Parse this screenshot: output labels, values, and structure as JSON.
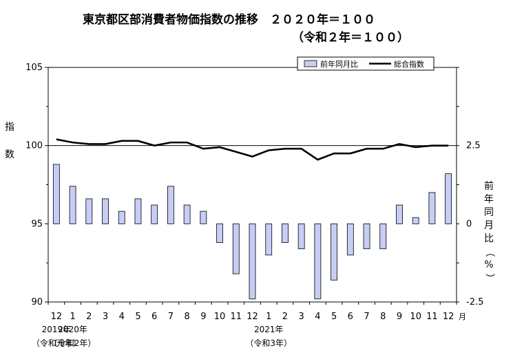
{
  "title": "東京都区部消費者物価指数の推移　２０２０年＝１００",
  "subtitle": "（令和２年＝１００）",
  "colors": {
    "bar_fill": "#c7cdf4",
    "bar_stroke": "#000000",
    "line": "#000000"
  },
  "chart_data": {
    "type": "bar+line",
    "categories": [
      "12",
      "1",
      "2",
      "3",
      "4",
      "5",
      "6",
      "7",
      "8",
      "9",
      "10",
      "11",
      "12",
      "1",
      "2",
      "3",
      "4",
      "5",
      "6",
      "7",
      "8",
      "9",
      "10",
      "11",
      "12"
    ],
    "x_unit": "月",
    "year_labels": [
      {
        "index": 0,
        "year": "2019年",
        "era": "（令和元年）"
      },
      {
        "index": 1,
        "year": "2020年",
        "era": "（令和2年）"
      },
      {
        "index": 13,
        "year": "2021年",
        "era": "（令和3年）"
      }
    ],
    "legend": {
      "bar": "前年同月比",
      "line": "総合指数",
      "position": "top-right"
    },
    "series": [
      {
        "name": "前年同月比",
        "type": "bar",
        "axis": "right",
        "values": [
          1.9,
          1.2,
          0.8,
          0.8,
          0.4,
          0.8,
          0.6,
          1.2,
          0.6,
          0.4,
          -0.6,
          -1.6,
          -2.4,
          -1.0,
          -0.6,
          -0.8,
          -2.4,
          -1.8,
          -1.0,
          -0.8,
          -0.8,
          0.6,
          0.2,
          1.0,
          1.6
        ]
      },
      {
        "name": "総合指数",
        "type": "line",
        "axis": "left",
        "values": [
          100.4,
          100.2,
          100.1,
          100.1,
          100.3,
          100.3,
          100.0,
          100.2,
          100.2,
          99.8,
          99.9,
          99.6,
          99.3,
          99.7,
          99.8,
          99.8,
          99.1,
          99.5,
          99.5,
          99.8,
          99.8,
          100.1,
          99.9,
          100.0,
          100.0
        ]
      }
    ],
    "left_axis": {
      "label": "指数",
      "min": 90,
      "max": 105,
      "ticks": [
        "90",
        "95",
        "100",
        "105"
      ]
    },
    "right_axis": {
      "label": "前年同月比（%）",
      "min": -2.5,
      "max": 5,
      "ticks": [
        "-2.5",
        "0",
        "2.5"
      ]
    },
    "reference_lines": [
      100
    ]
  }
}
